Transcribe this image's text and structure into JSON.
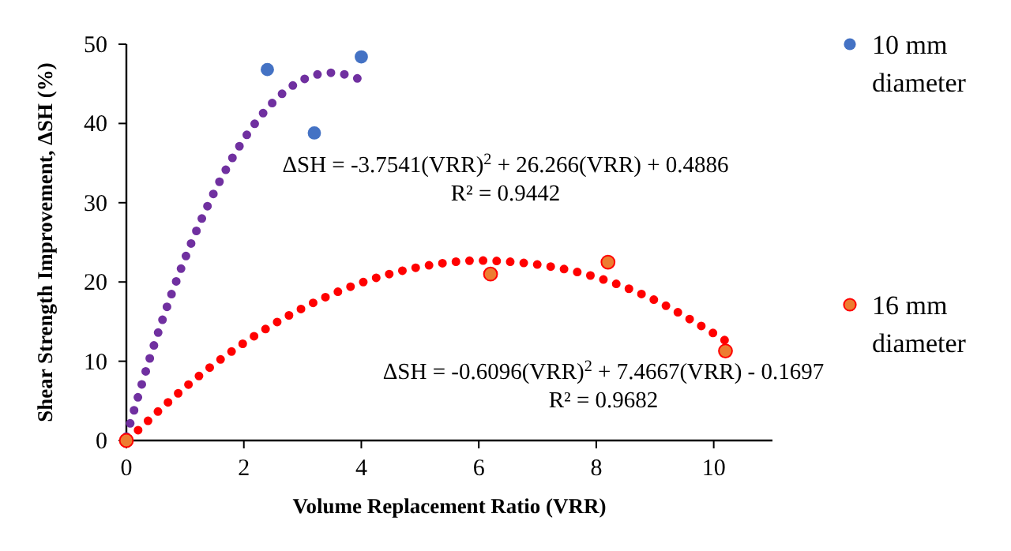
{
  "chart_data": {
    "type": "scatter",
    "xlabel": "Volume Replacement Ratio (VRR)",
    "ylabel": "Shear Strength Improvement, ΔSH (%)",
    "xlim": [
      0,
      11
    ],
    "ylim": [
      0,
      50
    ],
    "xticks": [
      0,
      2,
      4,
      6,
      8,
      10
    ],
    "yticks": [
      0,
      10,
      20,
      30,
      40,
      50
    ],
    "legend": "right",
    "marker": "circle",
    "grid": false,
    "series": [
      {
        "name": "10 mm diameter",
        "color": "#4472c4",
        "x": [
          2.4,
          3.2,
          4
        ],
        "values": [
          46.8,
          38.8,
          48.4
        ]
      },
      {
        "name": "16 mm diameter",
        "color": "#ed7d31",
        "x": [
          0,
          6.2,
          8.2,
          10.2
        ],
        "values": [
          0,
          21,
          22.5,
          11.3
        ]
      },
      {
        "type": "line",
        "marker": "none",
        "line_style": "dotted",
        "color": "#7030a0",
        "x": [
          0,
          0.5,
          1,
          1.5,
          2,
          2.5,
          3,
          3.5,
          4
        ],
        "values": [
          0.5,
          12.7,
          23,
          31.4,
          38,
          42.7,
          45.5,
          46.4,
          45.5
        ]
      },
      {
        "type": "line",
        "marker": "none",
        "line_style": "dotted",
        "color": "#ff0000",
        "x": [
          0.2,
          1,
          2,
          3,
          4,
          5,
          6,
          7,
          8,
          9,
          10,
          10.2
        ],
        "values": [
          1.3,
          6.7,
          12.3,
          16.7,
          19.9,
          21.9,
          22.7,
          22.2,
          20.6,
          17.7,
          13.5,
          12.6
        ]
      }
    ],
    "annotations": [
      "ΔSH = -3.7541(VRR)$^{2}$ + 26.266(VRR) + 0.4886",
      "R² = 0.9442",
      "ΔSH = -0.6096(VRR)$^{2}$ + 7.4667(VRR) - 0.1697",
      "R² = 0.9682"
    ]
  }
}
